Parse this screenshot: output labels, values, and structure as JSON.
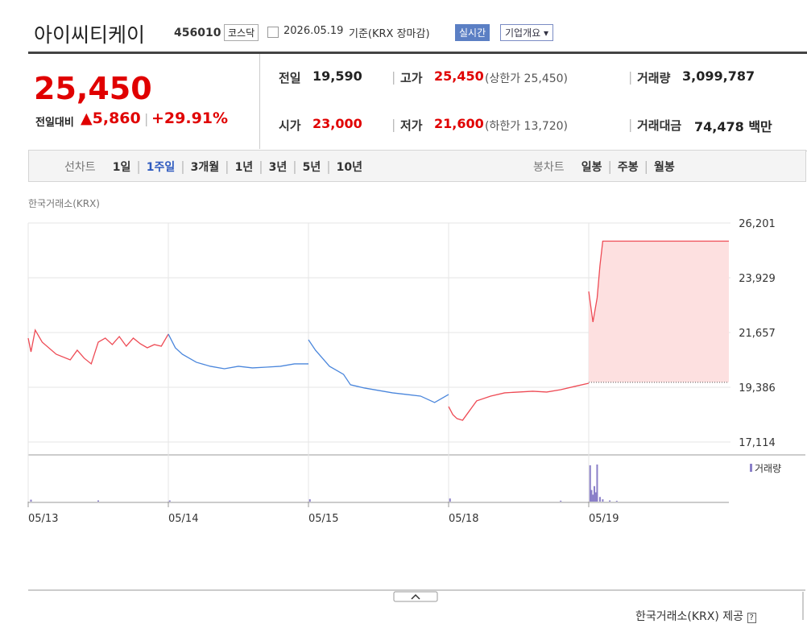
{
  "header": {
    "name": "아이씨티케이",
    "code": "456010",
    "market": "코스닥",
    "date": "2026.05.19",
    "basis": "기준(KRX 장마감)",
    "realtime": "실시간",
    "overview": "기업개요"
  },
  "price": {
    "current": "25,450",
    "change_label": "전일대비",
    "change": "5,860",
    "change_pct": "+29.91%"
  },
  "stats": [
    {
      "label": "전일",
      "value": "19,590"
    },
    {
      "label": "고가",
      "value": "25,450",
      "note": "(상한가 25,450)"
    },
    {
      "label": "거래량",
      "value": "3,099,787"
    },
    {
      "label": "시가",
      "value": "23,000"
    },
    {
      "label": "저가",
      "value": "21,600",
      "note": "(하한가 13,720)"
    },
    {
      "label": "거래대금",
      "value": "74,478 백만"
    }
  ],
  "tabs": {
    "line_label": "선차트",
    "line": [
      "1일",
      "1주일",
      "3개월",
      "1년",
      "3년",
      "5년",
      "10년"
    ],
    "candle_label": "봉차트",
    "candle": [
      "일봉",
      "주봉",
      "월봉"
    ]
  },
  "chart_data": [
    {
      "type": "line",
      "source": "한국거래소(KRX)",
      "xlim": [
        0,
        5
      ],
      "ylim": [
        17114,
        26201
      ],
      "yticks": [
        {
          "value": 26201,
          "label": "26,201"
        },
        {
          "value": 23929,
          "label": "23,929"
        },
        {
          "value": 21657,
          "label": "21,657"
        },
        {
          "value": 19386,
          "label": "19,386"
        },
        {
          "value": 17114,
          "label": "17,114"
        }
      ],
      "xticks": [
        {
          "value": 0,
          "label": "05/13"
        },
        {
          "value": 1,
          "label": "05/14"
        },
        {
          "value": 2,
          "label": "05/15"
        },
        {
          "value": 3,
          "label": "05/18"
        },
        {
          "value": 4,
          "label": "05/19"
        }
      ],
      "reference": 19590,
      "fill_color": "#fde0e0",
      "series": [
        {
          "color": "#ee4b55",
          "x": [
            0,
            0.02,
            0.05,
            0.1,
            0.2,
            0.3,
            0.35,
            0.4,
            0.45,
            0.5,
            0.55,
            0.6,
            0.65,
            0.7,
            0.75,
            0.8,
            0.85,
            0.9,
            0.95,
            1.0
          ],
          "values": [
            21425,
            20857,
            21759,
            21258,
            20757,
            20523,
            20924,
            20590,
            20356,
            21258,
            21425,
            21157,
            21491,
            21091,
            21425,
            21191,
            21024,
            21157,
            21091,
            21592
          ]
        },
        {
          "color": "#4a86dc",
          "x": [
            1,
            1.05,
            1.1,
            1.15,
            1.2,
            1.3,
            1.4,
            1.5,
            1.6,
            1.7,
            1.8,
            1.9,
            2.0
          ],
          "values": [
            21592,
            21024,
            20757,
            20590,
            20423,
            20256,
            20155,
            20256,
            20189,
            20222,
            20256,
            20356,
            20356
          ]
        },
        {
          "color": "#4a86dc",
          "x": [
            2,
            2.05,
            2.1,
            2.15,
            2.2,
            2.25,
            2.3,
            2.35,
            2.4,
            2.5,
            2.6,
            2.7,
            2.8,
            2.9,
            2.95,
            3.0
          ],
          "values": [
            21358,
            20924,
            20590,
            20256,
            20089,
            19922,
            19488,
            19421,
            19354,
            19254,
            19154,
            19087,
            19020,
            18753,
            18920,
            19087
          ]
        },
        {
          "color": "#ee4b55",
          "x": [
            3,
            3.03,
            3.06,
            3.1,
            3.15,
            3.2,
            3.3,
            3.4,
            3.5,
            3.6,
            3.7,
            3.8,
            3.9,
            4.0
          ],
          "values": [
            18586,
            18252,
            18085,
            18018,
            18419,
            18820,
            19020,
            19154,
            19187,
            19220,
            19187,
            19287,
            19421,
            19554
          ]
        },
        {
          "color": "#ee4b55",
          "x": [
            4,
            4.03,
            4.06,
            4.08,
            4.1,
            4.15,
            4.5,
            5.0
          ],
          "values": [
            23362,
            22093,
            23095,
            24431,
            25450,
            25450,
            25450,
            25450
          ]
        }
      ]
    },
    {
      "type": "bar",
      "legend": "거래량",
      "color": "#8a7fc8",
      "xlim": [
        0,
        5
      ],
      "ylim": [
        0,
        500000
      ],
      "x": [
        0.02,
        0.5,
        1.01,
        2.01,
        3.01,
        3.8,
        4.01,
        4.02,
        4.03,
        4.04,
        4.05,
        4.06,
        4.08,
        4.1,
        4.15,
        4.2
      ],
      "values": [
        25000,
        15000,
        15000,
        30000,
        40000,
        12000,
        470000,
        150000,
        90000,
        200000,
        120000,
        480000,
        60000,
        30000,
        15000,
        10000
      ]
    }
  ],
  "footer": "한국거래소(KRX) 제공"
}
